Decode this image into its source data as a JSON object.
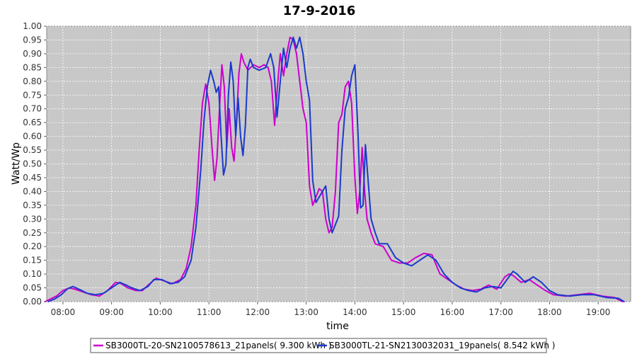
{
  "chart_data": {
    "type": "line",
    "title": "17-9-2016",
    "xlabel": "time",
    "ylabel": "Watt/Wp",
    "x_ticks": [
      "08:00",
      "09:00",
      "10:00",
      "11:00",
      "12:00",
      "13:00",
      "14:00",
      "15:00",
      "16:00",
      "17:00",
      "18:00",
      "19:00"
    ],
    "y_ticks": [
      "0.00",
      "0.05",
      "0.10",
      "0.15",
      "0.20",
      "0.25",
      "0.30",
      "0.35",
      "0.40",
      "0.45",
      "0.50",
      "0.55",
      "0.60",
      "0.65",
      "0.70",
      "0.75",
      "0.80",
      "0.85",
      "0.90",
      "0.95",
      "1.00"
    ],
    "xlim": [
      "07:40",
      "19:40"
    ],
    "ylim": [
      0,
      1.0
    ],
    "grid": true,
    "legend_position": "bottom",
    "plot_background": "#c8c8c8",
    "series": [
      {
        "name": "SB3000TL-20-SN2100578613_21panels( 9.300 kWh )",
        "color": "#cc00cc",
        "points": [
          [
            "07:38",
            0.0
          ],
          [
            "07:45",
            0.01
          ],
          [
            "07:52",
            0.02
          ],
          [
            "08:00",
            0.04
          ],
          [
            "08:08",
            0.05
          ],
          [
            "08:15",
            0.045
          ],
          [
            "08:25",
            0.035
          ],
          [
            "08:35",
            0.025
          ],
          [
            "08:45",
            0.02
          ],
          [
            "08:55",
            0.04
          ],
          [
            "09:05",
            0.07
          ],
          [
            "09:12",
            0.065
          ],
          [
            "09:20",
            0.05
          ],
          [
            "09:30",
            0.04
          ],
          [
            "09:38",
            0.04
          ],
          [
            "09:45",
            0.06
          ],
          [
            "09:55",
            0.085
          ],
          [
            "10:05",
            0.075
          ],
          [
            "10:15",
            0.065
          ],
          [
            "10:25",
            0.08
          ],
          [
            "10:32",
            0.12
          ],
          [
            "10:38",
            0.2
          ],
          [
            "10:44",
            0.35
          ],
          [
            "10:48",
            0.55
          ],
          [
            "10:52",
            0.72
          ],
          [
            "10:56",
            0.79
          ],
          [
            "11:00",
            0.72
          ],
          [
            "11:04",
            0.55
          ],
          [
            "11:07",
            0.44
          ],
          [
            "11:10",
            0.52
          ],
          [
            "11:13",
            0.7
          ],
          [
            "11:16",
            0.86
          ],
          [
            "11:19",
            0.78
          ],
          [
            "11:22",
            0.56
          ],
          [
            "11:25",
            0.7
          ],
          [
            "11:28",
            0.56
          ],
          [
            "11:31",
            0.51
          ],
          [
            "11:34",
            0.65
          ],
          [
            "11:37",
            0.83
          ],
          [
            "11:40",
            0.9
          ],
          [
            "11:43",
            0.87
          ],
          [
            "11:48",
            0.84
          ],
          [
            "11:55",
            0.86
          ],
          [
            "12:02",
            0.85
          ],
          [
            "12:08",
            0.86
          ],
          [
            "12:13",
            0.85
          ],
          [
            "12:17",
            0.8
          ],
          [
            "12:21",
            0.64
          ],
          [
            "12:25",
            0.8
          ],
          [
            "12:28",
            0.9
          ],
          [
            "12:32",
            0.82
          ],
          [
            "12:36",
            0.9
          ],
          [
            "12:40",
            0.96
          ],
          [
            "12:44",
            0.95
          ],
          [
            "12:48",
            0.9
          ],
          [
            "12:52",
            0.8
          ],
          [
            "12:56",
            0.7
          ],
          [
            "13:00",
            0.65
          ],
          [
            "13:04",
            0.42
          ],
          [
            "13:08",
            0.35
          ],
          [
            "13:12",
            0.38
          ],
          [
            "13:16",
            0.41
          ],
          [
            "13:20",
            0.4
          ],
          [
            "13:24",
            0.3
          ],
          [
            "13:28",
            0.25
          ],
          [
            "13:32",
            0.27
          ],
          [
            "13:36",
            0.4
          ],
          [
            "13:40",
            0.65
          ],
          [
            "13:44",
            0.68
          ],
          [
            "13:48",
            0.78
          ],
          [
            "13:52",
            0.8
          ],
          [
            "13:56",
            0.72
          ],
          [
            "14:00",
            0.45
          ],
          [
            "14:03",
            0.32
          ],
          [
            "14:06",
            0.4
          ],
          [
            "14:09",
            0.56
          ],
          [
            "14:12",
            0.4
          ],
          [
            "14:15",
            0.3
          ],
          [
            "14:20",
            0.25
          ],
          [
            "14:25",
            0.21
          ],
          [
            "14:35",
            0.2
          ],
          [
            "14:45",
            0.15
          ],
          [
            "14:55",
            0.14
          ],
          [
            "15:05",
            0.14
          ],
          [
            "15:15",
            0.16
          ],
          [
            "15:25",
            0.175
          ],
          [
            "15:35",
            0.17
          ],
          [
            "15:45",
            0.1
          ],
          [
            "15:55",
            0.08
          ],
          [
            "16:05",
            0.06
          ],
          [
            "16:15",
            0.045
          ],
          [
            "16:25",
            0.04
          ],
          [
            "16:35",
            0.045
          ],
          [
            "16:45",
            0.06
          ],
          [
            "16:55",
            0.045
          ],
          [
            "17:05",
            0.09
          ],
          [
            "17:10",
            0.1
          ],
          [
            "17:15",
            0.095
          ],
          [
            "17:25",
            0.07
          ],
          [
            "17:35",
            0.08
          ],
          [
            "17:45",
            0.06
          ],
          [
            "17:55",
            0.04
          ],
          [
            "18:05",
            0.025
          ],
          [
            "18:20",
            0.02
          ],
          [
            "18:35",
            0.025
          ],
          [
            "18:50",
            0.03
          ],
          [
            "19:05",
            0.02
          ],
          [
            "19:20",
            0.015
          ],
          [
            "19:30",
            0.0
          ]
        ]
      },
      {
        "name": "SB3000TL-21-SN2130032031_19panels( 8.542 kWh )",
        "color": "#1a3acc",
        "points": [
          [
            "07:42",
            0.0
          ],
          [
            "07:50",
            0.01
          ],
          [
            "07:58",
            0.025
          ],
          [
            "08:05",
            0.045
          ],
          [
            "08:12",
            0.055
          ],
          [
            "08:20",
            0.045
          ],
          [
            "08:30",
            0.03
          ],
          [
            "08:40",
            0.025
          ],
          [
            "08:50",
            0.03
          ],
          [
            "09:00",
            0.05
          ],
          [
            "09:10",
            0.07
          ],
          [
            "09:18",
            0.06
          ],
          [
            "09:25",
            0.05
          ],
          [
            "09:35",
            0.04
          ],
          [
            "09:45",
            0.055
          ],
          [
            "09:52",
            0.08
          ],
          [
            "10:02",
            0.08
          ],
          [
            "10:12",
            0.065
          ],
          [
            "10:22",
            0.07
          ],
          [
            "10:30",
            0.09
          ],
          [
            "10:38",
            0.15
          ],
          [
            "10:44",
            0.27
          ],
          [
            "10:50",
            0.48
          ],
          [
            "10:54",
            0.66
          ],
          [
            "10:58",
            0.78
          ],
          [
            "11:02",
            0.84
          ],
          [
            "11:06",
            0.8
          ],
          [
            "11:09",
            0.76
          ],
          [
            "11:12",
            0.78
          ],
          [
            "11:15",
            0.6
          ],
          [
            "11:18",
            0.46
          ],
          [
            "11:21",
            0.5
          ],
          [
            "11:24",
            0.75
          ],
          [
            "11:27",
            0.87
          ],
          [
            "11:30",
            0.8
          ],
          [
            "11:33",
            0.6
          ],
          [
            "11:36",
            0.74
          ],
          [
            "11:39",
            0.6
          ],
          [
            "11:42",
            0.53
          ],
          [
            "11:45",
            0.64
          ],
          [
            "11:48",
            0.85
          ],
          [
            "11:51",
            0.88
          ],
          [
            "11:55",
            0.85
          ],
          [
            "12:02",
            0.84
          ],
          [
            "12:10",
            0.85
          ],
          [
            "12:16",
            0.9
          ],
          [
            "12:20",
            0.85
          ],
          [
            "12:24",
            0.67
          ],
          [
            "12:28",
            0.8
          ],
          [
            "12:32",
            0.92
          ],
          [
            "12:36",
            0.85
          ],
          [
            "12:40",
            0.92
          ],
          [
            "12:44",
            0.96
          ],
          [
            "12:48",
            0.92
          ],
          [
            "12:52",
            0.96
          ],
          [
            "12:56",
            0.9
          ],
          [
            "13:00",
            0.8
          ],
          [
            "13:04",
            0.73
          ],
          [
            "13:08",
            0.44
          ],
          [
            "13:12",
            0.36
          ],
          [
            "13:16",
            0.38
          ],
          [
            "13:20",
            0.4
          ],
          [
            "13:24",
            0.42
          ],
          [
            "13:28",
            0.3
          ],
          [
            "13:32",
            0.25
          ],
          [
            "13:36",
            0.28
          ],
          [
            "13:40",
            0.31
          ],
          [
            "13:44",
            0.55
          ],
          [
            "13:48",
            0.7
          ],
          [
            "13:52",
            0.74
          ],
          [
            "13:56",
            0.82
          ],
          [
            "14:00",
            0.86
          ],
          [
            "14:04",
            0.6
          ],
          [
            "14:07",
            0.34
          ],
          [
            "14:10",
            0.35
          ],
          [
            "14:13",
            0.57
          ],
          [
            "14:16",
            0.45
          ],
          [
            "14:20",
            0.3
          ],
          [
            "14:25",
            0.25
          ],
          [
            "14:30",
            0.21
          ],
          [
            "14:40",
            0.21
          ],
          [
            "14:50",
            0.16
          ],
          [
            "15:00",
            0.14
          ],
          [
            "15:10",
            0.13
          ],
          [
            "15:20",
            0.15
          ],
          [
            "15:30",
            0.17
          ],
          [
            "15:40",
            0.15
          ],
          [
            "15:50",
            0.1
          ],
          [
            "16:00",
            0.07
          ],
          [
            "16:10",
            0.05
          ],
          [
            "16:20",
            0.04
          ],
          [
            "16:30",
            0.035
          ],
          [
            "16:40",
            0.05
          ],
          [
            "16:50",
            0.055
          ],
          [
            "17:00",
            0.05
          ],
          [
            "17:10",
            0.09
          ],
          [
            "17:15",
            0.11
          ],
          [
            "17:20",
            0.1
          ],
          [
            "17:30",
            0.07
          ],
          [
            "17:40",
            0.09
          ],
          [
            "17:50",
            0.07
          ],
          [
            "18:00",
            0.04
          ],
          [
            "18:10",
            0.025
          ],
          [
            "18:25",
            0.02
          ],
          [
            "18:40",
            0.025
          ],
          [
            "18:55",
            0.025
          ],
          [
            "19:10",
            0.015
          ],
          [
            "19:25",
            0.012
          ],
          [
            "19:32",
            0.0
          ]
        ]
      }
    ]
  }
}
